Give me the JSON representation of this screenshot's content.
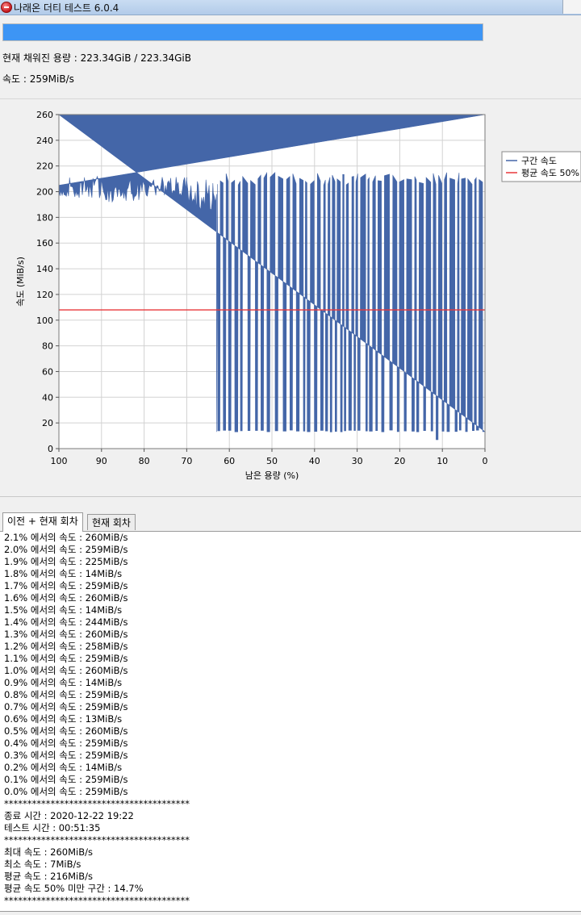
{
  "window": {
    "title": "나래온 더티 테스트 6.0.4"
  },
  "progress": {
    "percent": 100
  },
  "status": {
    "capacity_text": "현재 채워진 용량 : 223.34GiB / 223.34GiB",
    "speed_text": "속도 : 259MiB/s"
  },
  "chart_data": {
    "type": "line",
    "title": "",
    "xlabel": "남은 용량 (%)",
    "ylabel": "속도 (MiB/s)",
    "xlim": [
      100,
      0
    ],
    "ylim": [
      0,
      260
    ],
    "x_ticks": [
      "100",
      "90",
      "80",
      "70",
      "60",
      "50",
      "40",
      "30",
      "20",
      "10",
      "0"
    ],
    "y_ticks": [
      "0",
      "20",
      "40",
      "60",
      "80",
      "100",
      "120",
      "140",
      "160",
      "180",
      "200",
      "220",
      "240",
      "260"
    ],
    "grid": true,
    "legend_position": "right",
    "series": [
      {
        "name": "구간 속도",
        "color": "#4466a8",
        "ceiling": 260,
        "segments": [
          {
            "from": 100,
            "to": 90,
            "low_min": 195,
            "low_max": 212
          },
          {
            "from": 90,
            "to": 80,
            "low_min": 192,
            "low_max": 210
          },
          {
            "from": 80,
            "to": 70,
            "low_min": 195,
            "low_max": 212
          },
          {
            "from": 70,
            "to": 63,
            "low_min": 185,
            "low_max": 212
          }
        ],
        "drop_region": {
          "from": 63,
          "to": 0,
          "floor": 13,
          "dip_to": 7,
          "dip_at": 11
        }
      },
      {
        "name": "평균 속도 50%",
        "color": "#e8373a",
        "value": 108
      }
    ]
  },
  "tabs": [
    {
      "label": "이전 + 현재 회차",
      "active": true
    },
    {
      "label": "현재 회차",
      "active": false
    }
  ],
  "log_lines": [
    "2.1% 에서의 속도 : 260MiB/s",
    "2.0% 에서의 속도 : 259MiB/s",
    "1.9% 에서의 속도 : 225MiB/s",
    "1.8% 에서의 속도 : 14MiB/s",
    "1.7% 에서의 속도 : 259MiB/s",
    "1.6% 에서의 속도 : 260MiB/s",
    "1.5% 에서의 속도 : 14MiB/s",
    "1.4% 에서의 속도 : 244MiB/s",
    "1.3% 에서의 속도 : 260MiB/s",
    "1.2% 에서의 속도 : 258MiB/s",
    "1.1% 에서의 속도 : 259MiB/s",
    "1.0% 에서의 속도 : 260MiB/s",
    "0.9% 에서의 속도 : 14MiB/s",
    "0.8% 에서의 속도 : 259MiB/s",
    "0.7% 에서의 속도 : 259MiB/s",
    "0.6% 에서의 속도 : 13MiB/s",
    "0.5% 에서의 속도 : 260MiB/s",
    "0.4% 에서의 속도 : 259MiB/s",
    "0.3% 에서의 속도 : 259MiB/s",
    "0.2% 에서의 속도 : 14MiB/s",
    "0.1% 에서의 속도 : 259MiB/s",
    "0.0% 에서의 속도 : 259MiB/s",
    "****************************************",
    "종료 시간 : 2020-12-22 19:22",
    "테스트 시간 : 00:51:35",
    "****************************************",
    "최대 속도 : 260MiB/s",
    "최소 속도 : 7MiB/s",
    "평균 속도 : 216MiB/s",
    "평균 속도 50% 미만 구간 : 14.7%",
    "****************************************"
  ]
}
